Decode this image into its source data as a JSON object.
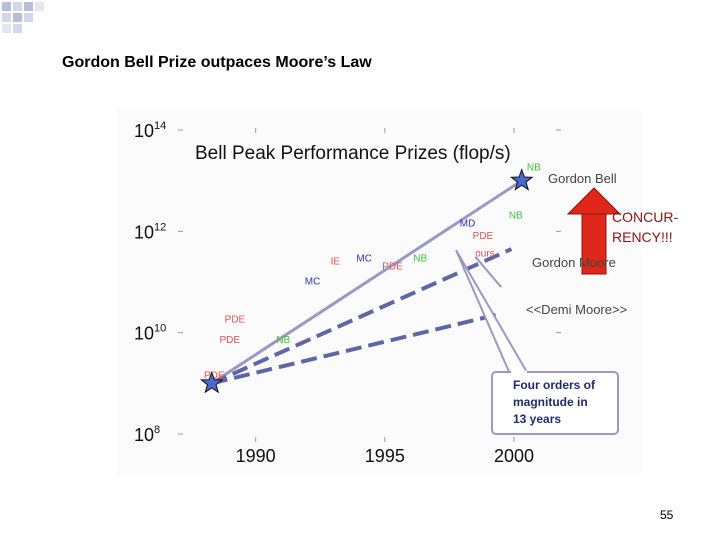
{
  "slide": {
    "title": "Gordon Bell Prize outpaces Moore’s Law",
    "page_number": "55"
  },
  "chart_data": {
    "type": "scatter",
    "title": "Bell Peak Performance Prizes (flop/s)",
    "xlabel": "",
    "ylabel": "",
    "x_ticks": [
      "1990",
      "1995",
      "2000"
    ],
    "y_ticks": [
      {
        "base": "10",
        "exp": "8"
      },
      {
        "base": "10",
        "exp": "10"
      },
      {
        "base": "10",
        "exp": "12"
      },
      {
        "base": "10",
        "exp": "14"
      }
    ],
    "xlim": [
      1986.5,
      2002.5
    ],
    "ylim_log10": [
      8,
      14
    ],
    "points": [
      {
        "label": "PDE",
        "x": 1988,
        "y": 9.1,
        "color": "#e05050"
      },
      {
        "label": "PDE",
        "x": 1988.6,
        "y": 9.8,
        "color": "#e05050"
      },
      {
        "label": "PDE",
        "x": 1988.8,
        "y": 10.2,
        "color": "#e05050"
      },
      {
        "label": "NB",
        "x": 1990.8,
        "y": 9.8,
        "color": "#40c040"
      },
      {
        "label": "MC",
        "x": 1991.9,
        "y": 10.95,
        "color": "#3030c0"
      },
      {
        "label": "IE",
        "x": 1992.9,
        "y": 11.35,
        "color": "#e05050"
      },
      {
        "label": "MC",
        "x": 1993.9,
        "y": 11.4,
        "color": "#3030c0"
      },
      {
        "label": "PDE",
        "x": 1994.9,
        "y": 11.25,
        "color": "#e05050"
      },
      {
        "label": "NB",
        "x": 1996.1,
        "y": 11.4,
        "color": "#40c040"
      },
      {
        "label": "MD",
        "x": 1997.9,
        "y": 12.1,
        "color": "#3030c0"
      },
      {
        "label": "PDE",
        "x": 1998.4,
        "y": 11.85,
        "color": "#e05050"
      },
      {
        "label": "ours",
        "x": 1998.5,
        "y": 11.5,
        "color": "#e05050"
      },
      {
        "label": "NB",
        "x": 1999.8,
        "y": 12.25,
        "color": "#40c040"
      },
      {
        "label": "NB",
        "x": 2000.5,
        "y": 13.2,
        "color": "#40c040"
      }
    ],
    "trend_lines": [
      {
        "name": "Gordon Bell",
        "from": [
          1988.3,
          9.0
        ],
        "to": [
          2000.3,
          13.0
        ],
        "style": "solid"
      },
      {
        "name": "Gordon Moore",
        "from": [
          1988.3,
          9.0
        ],
        "to": [
          1999.9,
          11.65
        ],
        "style": "dashed"
      },
      {
        "name": "<<Demi Moore>>",
        "from": [
          1988.3,
          9.0
        ],
        "to": [
          1999.3,
          10.35
        ],
        "style": "dashed"
      }
    ],
    "stars": [
      {
        "x": 1988.3,
        "y": 9.0
      },
      {
        "x": 2000.3,
        "y": 13.0
      }
    ]
  },
  "annotations": {
    "gordon_bell": "Gordon Bell",
    "gordon_moore": "Gordon Moore",
    "demi_moore": "<<Demi Moore>>",
    "concurrency_line1": "CONCUR-",
    "concurrency_line2": "RENCY!!!",
    "callout_line1": "Four orders of",
    "callout_line2": "magnitude in",
    "callout_line3": "13 years"
  },
  "colors": {
    "bell_line": "#9b98c4",
    "dash_line": "#5e67a6",
    "arrow": "#e0281a",
    "concurrency_text": "#8b1410",
    "callout_text": "#1f2a6e",
    "star_fill": "#4a6ad0"
  }
}
